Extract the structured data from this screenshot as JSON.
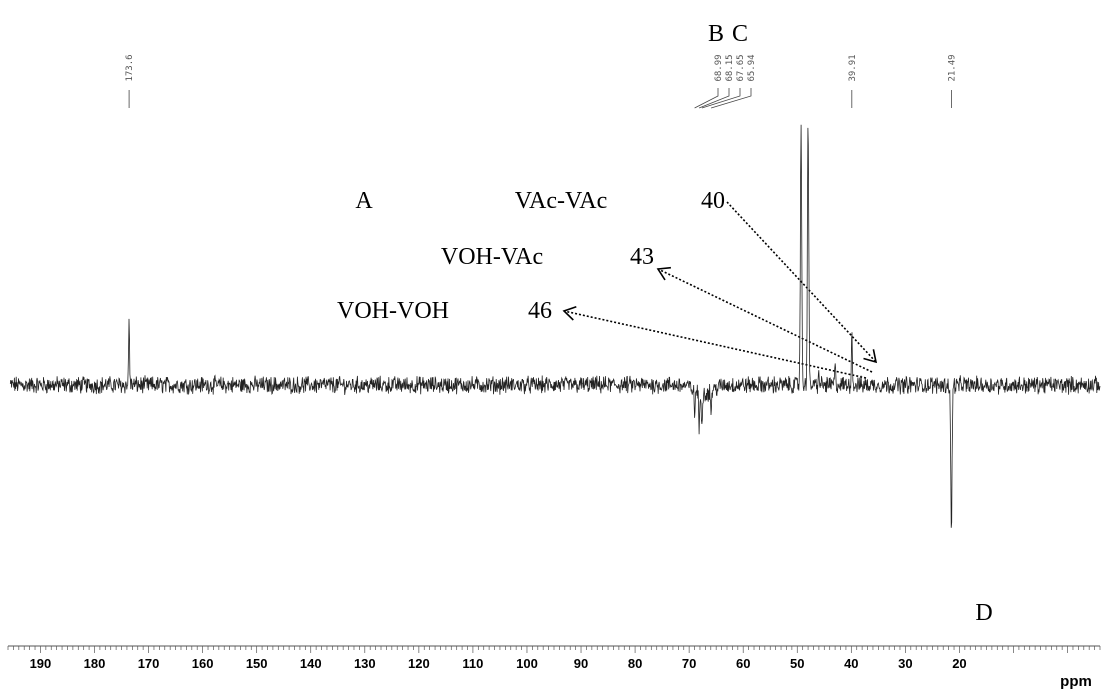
{
  "chart_data": {
    "type": "line",
    "title": "",
    "xlabel": "ppm",
    "xlim": [
      196,
      -6
    ],
    "x_reversed": true,
    "x_ticks": [
      190,
      180,
      170,
      160,
      150,
      140,
      130,
      120,
      110,
      100,
      90,
      80,
      70,
      60,
      50,
      40,
      30,
      20
    ],
    "peak_labels": [
      {
        "ppm": 173.6,
        "label": "173.6"
      },
      {
        "ppm": 68.99,
        "label": "68.99"
      },
      {
        "ppm": 68.15,
        "label": "68.15"
      },
      {
        "ppm": 67.65,
        "label": "67.65"
      },
      {
        "ppm": 65.94,
        "label": "65.94"
      },
      {
        "ppm": 39.91,
        "label": "39.91"
      },
      {
        "ppm": 21.49,
        "label": "21.49"
      }
    ],
    "signals": [
      {
        "ppm": 173.6,
        "intensity": 0.9
      },
      {
        "ppm": 68.99,
        "intensity": -0.35
      },
      {
        "ppm": 68.15,
        "intensity": -0.55
      },
      {
        "ppm": 67.65,
        "intensity": -0.45
      },
      {
        "ppm": 65.94,
        "intensity": -0.3
      },
      {
        "ppm": 49.3,
        "intensity": 3.7
      },
      {
        "ppm": 48.0,
        "intensity": 3.7
      },
      {
        "ppm": 46.0,
        "intensity": 0.15
      },
      {
        "ppm": 43.0,
        "intensity": 0.25
      },
      {
        "ppm": 39.91,
        "intensity": 0.75
      },
      {
        "ppm": 21.49,
        "intensity": -2.1
      }
    ],
    "annotations": {
      "letters": [
        {
          "text": "A"
        },
        {
          "text": "B"
        },
        {
          "text": "C"
        },
        {
          "text": "D"
        }
      ],
      "assignments": [
        {
          "label": "VAc-VAc",
          "value": "40",
          "ppm": 40
        },
        {
          "label": "VOH-VAc",
          "value": "43",
          "ppm": 43
        },
        {
          "label": "VOH-VOH",
          "value": "46",
          "ppm": 46
        }
      ]
    }
  }
}
